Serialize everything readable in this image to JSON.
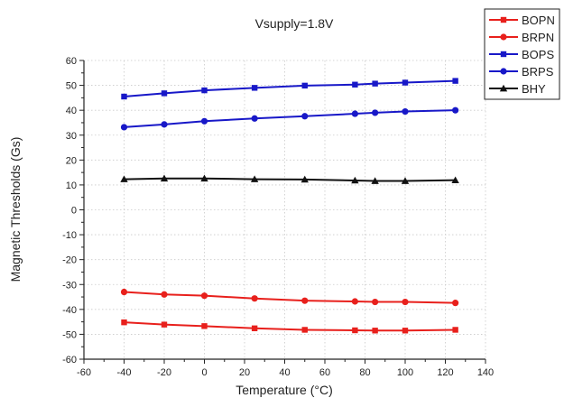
{
  "chart_data": {
    "type": "line",
    "title": "Vsupply=1.8V",
    "xlabel": "Temperature (°C)",
    "ylabel": "Magnetic Thresholds (Gs)",
    "xlim": [
      -60,
      140
    ],
    "ylim": [
      -60,
      60
    ],
    "xticks": [
      -60,
      -40,
      -20,
      0,
      20,
      40,
      60,
      80,
      100,
      120,
      140
    ],
    "yticks": [
      -60,
      -50,
      -40,
      -30,
      -20,
      -10,
      0,
      10,
      20,
      30,
      40,
      50,
      60
    ],
    "grid": true,
    "legend_position": "top-right outside",
    "x": [
      -40,
      -20,
      0,
      25,
      50,
      75,
      85,
      100,
      125
    ],
    "series": [
      {
        "name": "BOPN",
        "color": "#e8201c",
        "marker": "square",
        "values": [
          -45.2,
          -46.1,
          -46.7,
          -47.6,
          -48.2,
          -48.4,
          -48.5,
          -48.5,
          -48.2
        ]
      },
      {
        "name": "BRPN",
        "color": "#e8201c",
        "marker": "circle",
        "values": [
          -33.0,
          -34.0,
          -34.5,
          -35.6,
          -36.5,
          -36.8,
          -37.0,
          -37.0,
          -37.4
        ]
      },
      {
        "name": "BOPS",
        "color": "#1818c8",
        "marker": "square",
        "values": [
          45.5,
          46.8,
          48.0,
          49.0,
          49.9,
          50.3,
          50.7,
          51.1,
          51.8
        ]
      },
      {
        "name": "BRPS",
        "color": "#1818c8",
        "marker": "circle",
        "values": [
          33.2,
          34.3,
          35.6,
          36.7,
          37.6,
          38.6,
          39.0,
          39.5,
          40.0
        ]
      },
      {
        "name": "BHY",
        "color": "#111111",
        "marker": "triangle",
        "values": [
          12.3,
          12.6,
          12.6,
          12.3,
          12.2,
          11.8,
          11.6,
          11.6,
          11.9
        ]
      }
    ]
  }
}
